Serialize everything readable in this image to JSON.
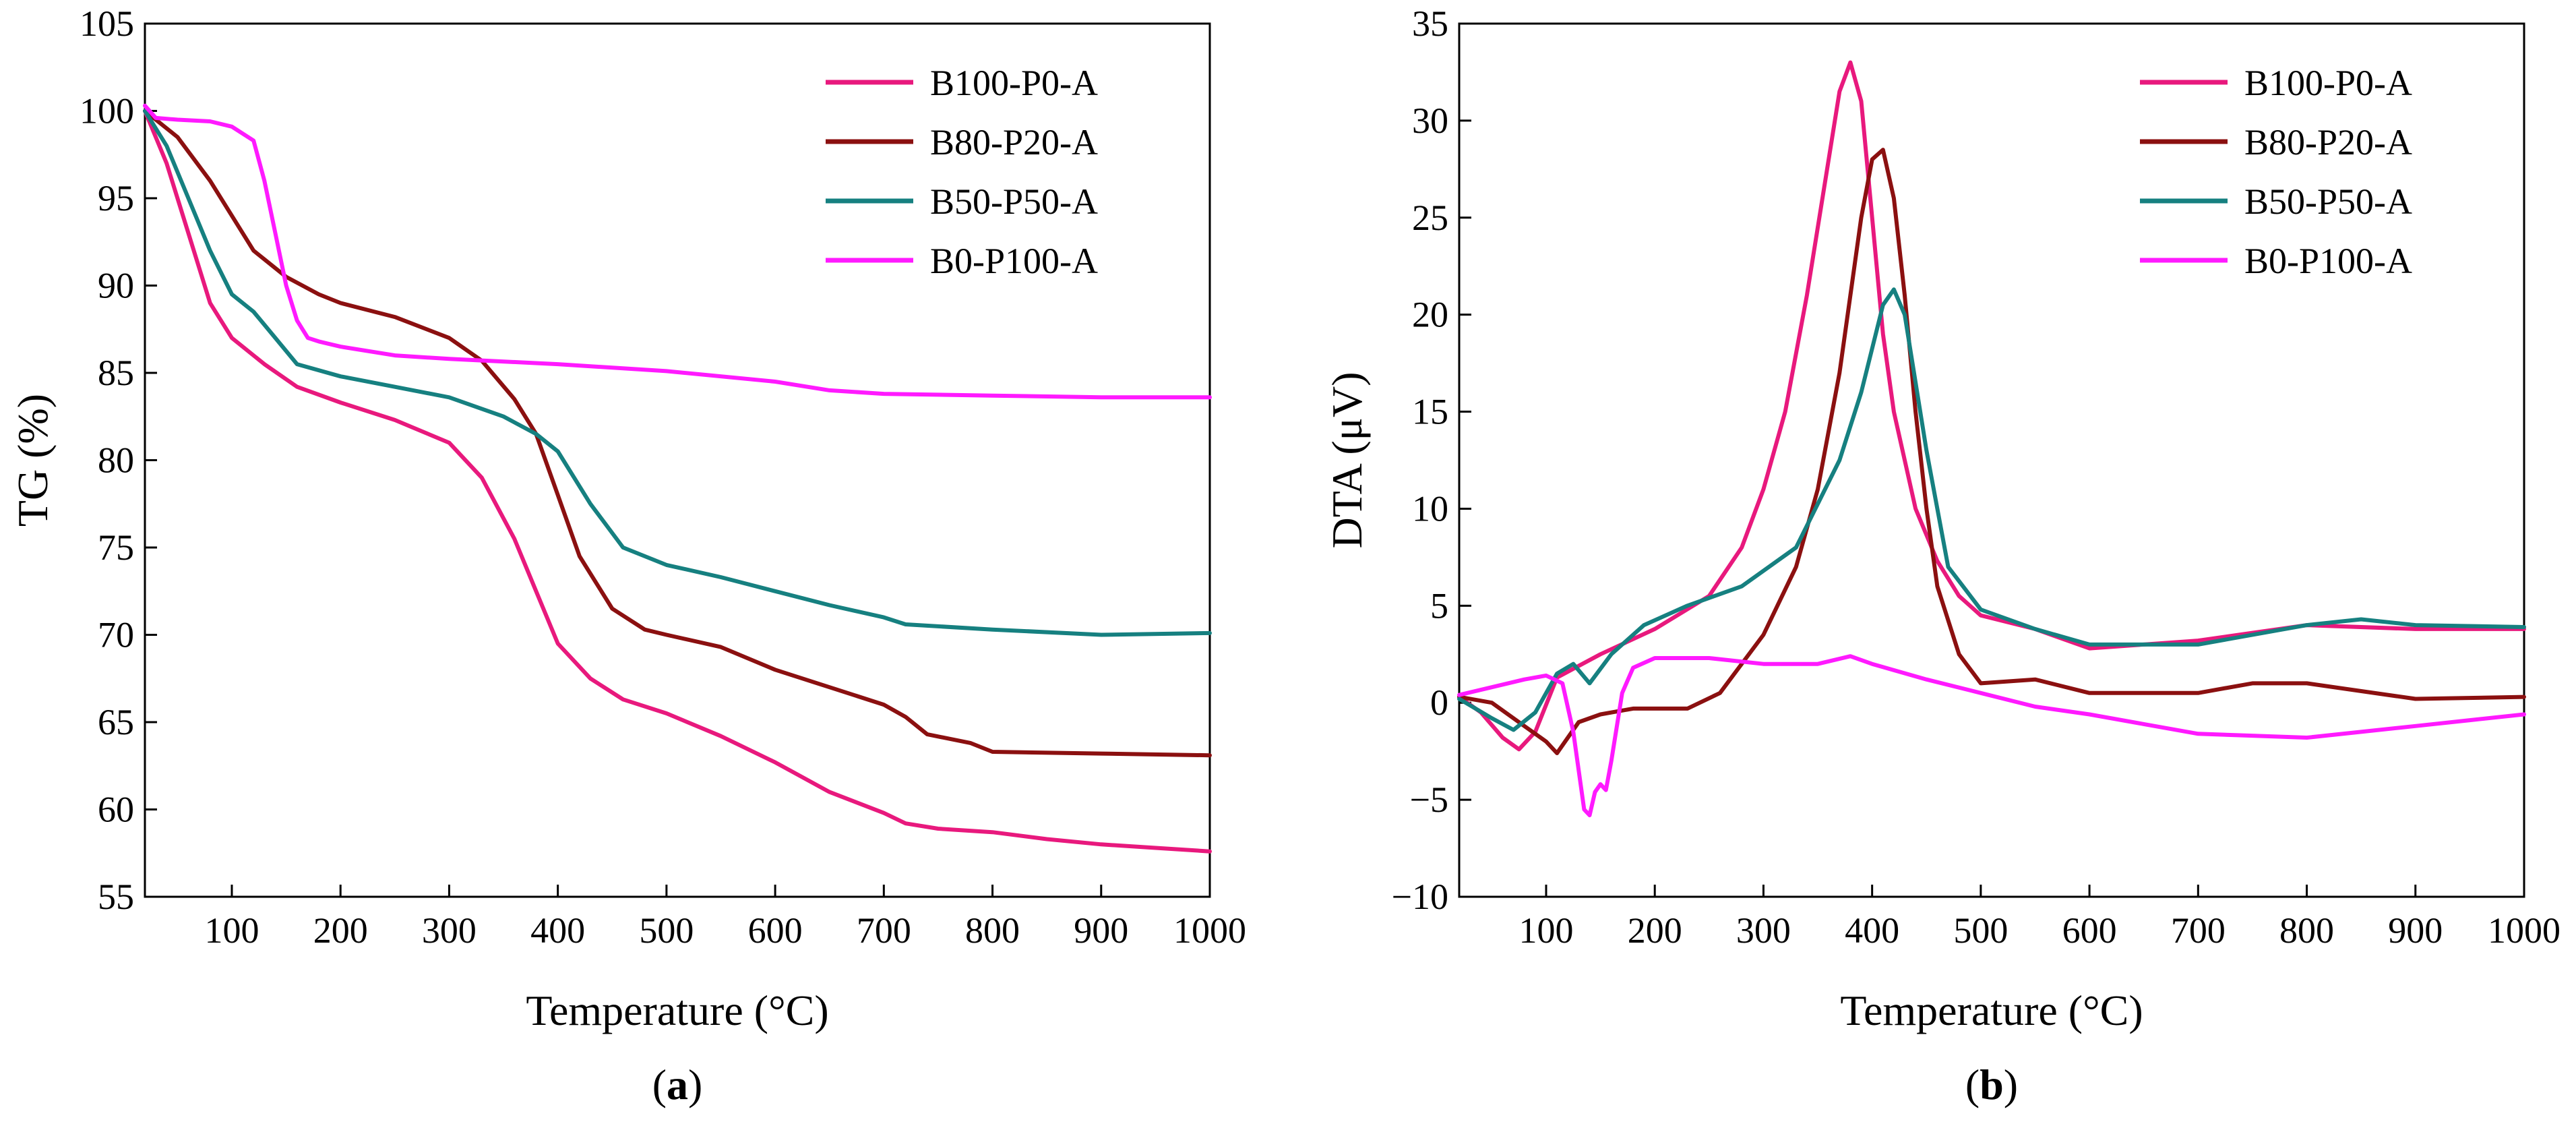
{
  "chart_data": [
    {
      "type": "line",
      "panel_label": "a",
      "xlabel": "Temperature (°C)",
      "ylabel": "TG (%)",
      "xlim": [
        20,
        1000
      ],
      "ylim": [
        55,
        105
      ],
      "xticks": [
        100,
        200,
        300,
        400,
        500,
        600,
        700,
        800,
        900,
        1000
      ],
      "yticks": [
        55,
        60,
        65,
        70,
        75,
        80,
        85,
        90,
        95,
        100,
        105
      ],
      "legend_position": "top-right",
      "grid": false,
      "series": [
        {
          "name": "B100-P0-A",
          "color": "#e8197d",
          "x": [
            20,
            40,
            60,
            80,
            100,
            130,
            160,
            200,
            250,
            300,
            330,
            360,
            380,
            400,
            430,
            460,
            500,
            550,
            600,
            650,
            700,
            720,
            750,
            800,
            850,
            900,
            950,
            1000
          ],
          "y": [
            100,
            97,
            93,
            89,
            87,
            85.5,
            84.2,
            83.3,
            82.3,
            81,
            79,
            75.5,
            72.5,
            69.5,
            67.5,
            66.3,
            65.5,
            64.2,
            62.7,
            61,
            59.8,
            59.2,
            58.9,
            58.7,
            58.3,
            58,
            57.8,
            57.6
          ]
        },
        {
          "name": "B80-P20-A",
          "color": "#8b1010",
          "x": [
            20,
            50,
            80,
            100,
            120,
            150,
            180,
            200,
            250,
            300,
            330,
            360,
            380,
            400,
            420,
            450,
            480,
            500,
            550,
            600,
            650,
            700,
            720,
            740,
            780,
            800,
            900,
            1000
          ],
          "y": [
            100,
            98.5,
            96,
            94,
            92,
            90.5,
            89.5,
            89,
            88.2,
            87,
            85.7,
            83.5,
            81.5,
            78,
            74.5,
            71.5,
            70.3,
            70,
            69.3,
            68,
            67,
            66,
            65.3,
            64.3,
            63.8,
            63.3,
            63.2,
            63.1
          ]
        },
        {
          "name": "B50-P50-A",
          "color": "#168080",
          "x": [
            20,
            40,
            60,
            80,
            100,
            120,
            140,
            160,
            200,
            250,
            300,
            350,
            380,
            400,
            430,
            460,
            500,
            550,
            600,
            650,
            700,
            720,
            800,
            900,
            1000
          ],
          "y": [
            100,
            98,
            95,
            92,
            89.5,
            88.5,
            87,
            85.5,
            84.8,
            84.2,
            83.6,
            82.5,
            81.5,
            80.5,
            77.5,
            75,
            74,
            73.3,
            72.5,
            71.7,
            71,
            70.6,
            70.3,
            70,
            70.1
          ]
        },
        {
          "name": "B0-P100-A",
          "color": "#ff1aff",
          "x": [
            20,
            30,
            50,
            80,
            100,
            120,
            130,
            140,
            150,
            160,
            170,
            180,
            200,
            250,
            300,
            400,
            500,
            600,
            650,
            700,
            800,
            900,
            1000
          ],
          "y": [
            100.3,
            99.6,
            99.5,
            99.4,
            99.1,
            98.3,
            96,
            93,
            90,
            88,
            87,
            86.8,
            86.5,
            86,
            85.8,
            85.5,
            85.1,
            84.5,
            84,
            83.8,
            83.7,
            83.6,
            83.6
          ]
        }
      ]
    },
    {
      "type": "line",
      "panel_label": "b",
      "xlabel": "Temperature (°C)",
      "ylabel": "DTA (μV)",
      "xlim": [
        20,
        1000
      ],
      "ylim": [
        -10,
        35
      ],
      "xticks": [
        100,
        200,
        300,
        400,
        500,
        600,
        700,
        800,
        900,
        1000
      ],
      "yticks": [
        -10,
        -5,
        0,
        5,
        10,
        15,
        20,
        25,
        30,
        35
      ],
      "legend_position": "top-right",
      "grid": false,
      "series": [
        {
          "name": "B100-P0-A",
          "color": "#e8197d",
          "x": [
            20,
            40,
            60,
            75,
            90,
            110,
            150,
            200,
            250,
            280,
            300,
            320,
            340,
            360,
            370,
            380,
            390,
            400,
            410,
            420,
            440,
            460,
            480,
            500,
            550,
            600,
            650,
            700,
            800,
            900,
            1000
          ],
          "y": [
            0.3,
            -0.5,
            -1.8,
            -2.4,
            -1.5,
            1.3,
            2.5,
            3.8,
            5.5,
            8,
            11,
            15,
            21,
            28,
            31.5,
            33,
            31,
            25,
            19,
            15,
            10,
            7.3,
            5.5,
            4.5,
            3.8,
            2.8,
            3,
            3.2,
            4,
            3.8,
            3.8
          ]
        },
        {
          "name": "B80-P20-A",
          "color": "#8b1010",
          "x": [
            20,
            50,
            80,
            100,
            110,
            130,
            150,
            180,
            200,
            230,
            260,
            300,
            330,
            350,
            370,
            380,
            390,
            400,
            410,
            420,
            430,
            440,
            450,
            460,
            480,
            500,
            550,
            600,
            650,
            700,
            750,
            800,
            900,
            1000
          ],
          "y": [
            0.3,
            0,
            -1.2,
            -2,
            -2.6,
            -1,
            -0.6,
            -0.3,
            -0.3,
            -0.3,
            0.5,
            3.5,
            7,
            11,
            17,
            21,
            25,
            28,
            28.5,
            26,
            21,
            15,
            10,
            6,
            2.5,
            1,
            1.2,
            0.5,
            0.5,
            0.5,
            1,
            1,
            0.2,
            0.3
          ]
        },
        {
          "name": "B50-P50-A",
          "color": "#168080",
          "x": [
            20,
            50,
            70,
            90,
            110,
            125,
            140,
            160,
            190,
            230,
            280,
            330,
            370,
            390,
            410,
            420,
            430,
            450,
            470,
            500,
            550,
            600,
            650,
            700,
            800,
            850,
            900,
            1000
          ],
          "y": [
            0.2,
            -0.8,
            -1.4,
            -0.5,
            1.5,
            2,
            1,
            2.5,
            4,
            5,
            6,
            8,
            12.5,
            16,
            20.5,
            21.3,
            20,
            13,
            7,
            4.8,
            3.8,
            3,
            3,
            3,
            4,
            4.3,
            4,
            3.9
          ]
        },
        {
          "name": "B0-P100-A",
          "color": "#ff1aff",
          "x": [
            20,
            50,
            80,
            100,
            115,
            125,
            135,
            140,
            145,
            150,
            155,
            160,
            170,
            180,
            200,
            250,
            300,
            350,
            380,
            400,
            450,
            500,
            550,
            600,
            650,
            700,
            750,
            800,
            850,
            900,
            950,
            1000
          ],
          "y": [
            0.4,
            0.8,
            1.2,
            1.4,
            1,
            -1.5,
            -5.5,
            -5.8,
            -4.6,
            -4.2,
            -4.5,
            -3,
            0.5,
            1.8,
            2.3,
            2.3,
            2,
            2,
            2.4,
            2,
            1.2,
            0.5,
            -0.2,
            -0.6,
            -1.1,
            -1.6,
            -1.7,
            -1.8,
            -1.5,
            -1.2,
            -0.9,
            -0.6
          ]
        }
      ]
    }
  ]
}
